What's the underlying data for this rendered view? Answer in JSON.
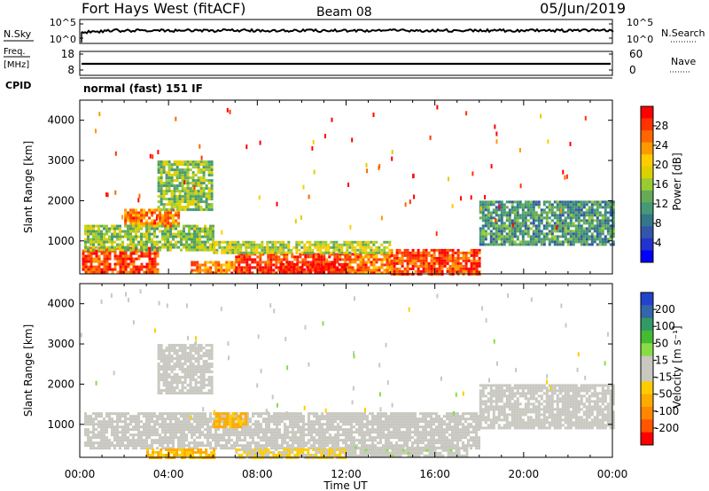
{
  "header": {
    "station": "Fort Hays West (fitACF)",
    "beam": "Beam 08",
    "date": "05/Jun/2019"
  },
  "aux_panels": {
    "nsky_label": "N.Sky",
    "nsearch_label": "N.Search",
    "freq_label_top": "Freq.",
    "freq_label_unit": "[MHz]",
    "nave_label": "Nave",
    "cpid_label": "CPID",
    "cpid_value": "normal (fast) 151 IF",
    "noise_ticks_left": [
      "10^5",
      "10^0"
    ],
    "noise_ticks_right": [
      "10^5",
      "10^0"
    ],
    "freq_ticks": [
      "18",
      "8"
    ],
    "nave_ticks": [
      "60",
      "0"
    ]
  },
  "colorbars": {
    "power": {
      "label": "Power [dB]",
      "ticks": [
        "28",
        "24",
        "20",
        "16",
        "12",
        "8",
        "4"
      ],
      "colors": [
        "#ff0000",
        "#ff3300",
        "#ff6600",
        "#ff9900",
        "#ffcc00",
        "#ddd000",
        "#99cc33",
        "#66aa55",
        "#449977",
        "#337788",
        "#3355aa",
        "#2233cc",
        "#0000ff"
      ]
    },
    "velocity": {
      "label": "Velocity [m s⁻¹]",
      "ticks": [
        "200",
        "100",
        "50",
        "15",
        "-15",
        "-50",
        "-100",
        "-200"
      ],
      "colors": [
        "#2244cc",
        "#3366aa",
        "#339966",
        "#44bb33",
        "#88dd44",
        "#c8c8c0",
        "#c8c8c0",
        "#ffcc00",
        "#ffaa00",
        "#ff8800",
        "#ff5500",
        "#ff0000"
      ]
    }
  },
  "axes": {
    "ylabel": "Slant Range [km]",
    "xlabel": "Time UT",
    "x_ticks": [
      "00:00",
      "04:00",
      "08:00",
      "12:00",
      "16:00",
      "20:00",
      "00:00"
    ],
    "y_ticks": [
      "4000",
      "3000",
      "2000",
      "1000"
    ]
  },
  "chart_data": [
    {
      "type": "heatmap",
      "panel": "power",
      "x": "Time UT (hours)",
      "xlim": [
        0,
        24
      ],
      "ylim": [
        180,
        4500
      ],
      "colorbar_range": [
        0,
        30
      ],
      "regions": [
        {
          "t0": 0.1,
          "t1": 3.5,
          "r0": 200,
          "r1": 850,
          "value": 27
        },
        {
          "t0": 2.0,
          "t1": 4.5,
          "r0": 1350,
          "r1": 1800,
          "value": 24
        },
        {
          "t0": 3.5,
          "t1": 6.0,
          "r0": 1800,
          "r1": 3000,
          "value": 14
        },
        {
          "t0": 0.2,
          "t1": 6.0,
          "r0": 800,
          "r1": 1400,
          "value": 14
        },
        {
          "t0": 5.0,
          "t1": 7.0,
          "r0": 200,
          "r1": 500,
          "value": 24
        },
        {
          "t0": 7.0,
          "t1": 12.0,
          "r0": 200,
          "r1": 700,
          "value": 28
        },
        {
          "t0": 9.0,
          "t1": 12.0,
          "r0": 200,
          "r1": 450,
          "value": 30
        },
        {
          "t0": 12.0,
          "t1": 14.0,
          "r0": 200,
          "r1": 700,
          "value": 24
        },
        {
          "t0": 14.0,
          "t1": 18.0,
          "r0": 200,
          "r1": 800,
          "value": 27
        },
        {
          "t0": 6.0,
          "t1": 14.0,
          "r0": 700,
          "r1": 1000,
          "value": 16
        },
        {
          "t0": 18.0,
          "t1": 24.0,
          "r0": 900,
          "r1": 2000,
          "value": 10
        }
      ]
    },
    {
      "type": "heatmap",
      "panel": "velocity",
      "x": "Time UT (hours)",
      "xlim": [
        0,
        24
      ],
      "ylim": [
        180,
        4500
      ],
      "colorbar_range": [
        -250,
        250
      ],
      "regions": [
        {
          "t0": 0.2,
          "t1": 18.0,
          "r0": 400,
          "r1": 1300,
          "value": 0
        },
        {
          "t0": 3.5,
          "t1": 6.0,
          "r0": 1800,
          "r1": 3000,
          "value": 0
        },
        {
          "t0": 6.0,
          "t1": 7.5,
          "r0": 950,
          "r1": 1300,
          "value": -100
        },
        {
          "t0": 3.0,
          "t1": 6.0,
          "r0": 200,
          "r1": 400,
          "value": -100
        },
        {
          "t0": 7.0,
          "t1": 12.0,
          "r0": 200,
          "r1": 400,
          "value": -50
        },
        {
          "t0": 12.0,
          "t1": 17.5,
          "r0": 200,
          "r1": 450,
          "value": 20
        },
        {
          "t0": 18.0,
          "t1": 24.0,
          "r0": 900,
          "r1": 2000,
          "value": 0
        }
      ]
    }
  ]
}
